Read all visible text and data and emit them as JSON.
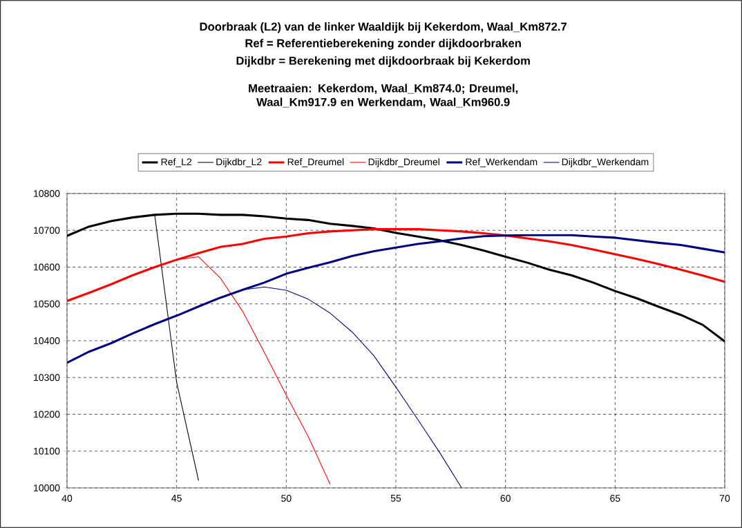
{
  "chart_data": {
    "type": "line",
    "title": "Doorbraak (L2) van de linker Waaldijk bij Kekerdom, Waal_Km872.7",
    "subtitle": "Ref = Referentieberekening zonder dijkdoorbraken",
    "annotations": [
      "Dijkdbr = Berekening met dijkdoorbraak bij Kekerdom",
      "Meetraaien: Kekerdom, Waal_Km874.0;  Dreumel, Waal_Km917.9 en Werkendam, Waal_Km960.9"
    ],
    "x": [
      40,
      41,
      42,
      43,
      44,
      45,
      46,
      47,
      48,
      49,
      50,
      51,
      52,
      53,
      54,
      55,
      56,
      57,
      58,
      59,
      60,
      61,
      62,
      63,
      64,
      65,
      66,
      67,
      68,
      69,
      70
    ],
    "series": [
      {
        "name": "Ref_L2",
        "color": "#000000",
        "values": [
          10685,
          10710,
          10725,
          10735,
          10742,
          10745,
          10745,
          10742,
          10742,
          10738,
          10732,
          10728,
          10718,
          10712,
          10705,
          10693,
          10683,
          10673,
          10660,
          10645,
          10628,
          10612,
          10593,
          10578,
          10558,
          10535,
          10515,
          10492,
          10470,
          10443,
          10398
        ]
      },
      {
        "name": "Dijkdbr_L2",
        "color": "#000000",
        "x": [
          44,
          45,
          46
        ],
        "values": [
          10742,
          10287,
          10020
        ]
      },
      {
        "name": "Ref_Dreumel",
        "color": "#ff0000",
        "values": [
          10508,
          10530,
          10553,
          10578,
          10600,
          10620,
          10638,
          10655,
          10663,
          10677,
          10683,
          10692,
          10697,
          10700,
          10703,
          10703,
          10703,
          10700,
          10697,
          10692,
          10686,
          10678,
          10670,
          10660,
          10648,
          10635,
          10622,
          10608,
          10593,
          10577,
          10560
        ]
      },
      {
        "name": "Dijkdbr_Dreumel",
        "color": "#ff0000",
        "x": [
          45,
          46,
          47,
          48,
          49,
          50,
          51,
          52
        ],
        "values": [
          10620,
          10628,
          10570,
          10481,
          10368,
          10252,
          10140,
          10010
        ]
      },
      {
        "name": "Ref_Werkendam",
        "color": "#000080",
        "values": [
          10340,
          10370,
          10393,
          10420,
          10445,
          10468,
          10493,
          10517,
          10538,
          10558,
          10582,
          10598,
          10613,
          10630,
          10643,
          10653,
          10663,
          10670,
          10678,
          10684,
          10686,
          10687,
          10687,
          10687,
          10683,
          10680,
          10673,
          10666,
          10660,
          10650,
          10640
        ]
      },
      {
        "name": "Dijkdbr_Werkendam",
        "color": "#000080",
        "x": [
          47,
          48,
          49,
          50,
          51,
          52,
          53,
          54,
          55,
          56,
          57,
          58
        ],
        "values": [
          10517,
          10538,
          10546,
          10537,
          10513,
          10475,
          10424,
          10359,
          10274,
          10186,
          10096,
          10000
        ]
      }
    ],
    "xlim": [
      40,
      70
    ],
    "ylim": [
      10000,
      10800
    ],
    "xticks": [
      40,
      45,
      50,
      55,
      60,
      65,
      70
    ],
    "yticks": [
      10000,
      10100,
      10200,
      10300,
      10400,
      10500,
      10600,
      10700,
      10800
    ],
    "grid": true,
    "legend": "top",
    "line_style": "solid"
  }
}
